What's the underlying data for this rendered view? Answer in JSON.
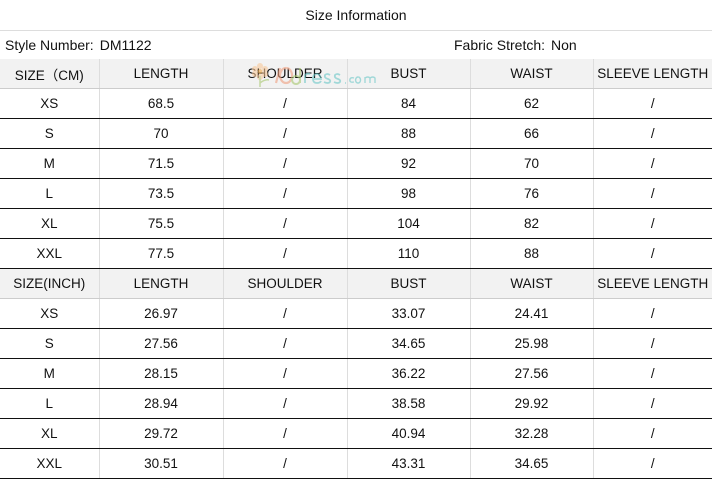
{
  "title": "Size Information",
  "style_label": "Style Number:",
  "style_value": "DM1122",
  "stretch_label": "Fabric Stretch:",
  "stretch_value": "Non",
  "watermark": "IOdress.com",
  "tables": [
    {
      "headers": [
        "SIZE（CM)",
        "LENGTH",
        "SHOULDER",
        "BUST",
        "WAIST",
        "SLEEVE LENGTH"
      ],
      "rows": [
        [
          "XS",
          "68.5",
          "/",
          "84",
          "62",
          "/"
        ],
        [
          "S",
          "70",
          "/",
          "88",
          "66",
          "/"
        ],
        [
          "M",
          "71.5",
          "/",
          "92",
          "70",
          "/"
        ],
        [
          "L",
          "73.5",
          "/",
          "98",
          "76",
          "/"
        ],
        [
          "XL",
          "75.5",
          "/",
          "104",
          "82",
          "/"
        ],
        [
          "XXL",
          "77.5",
          "/",
          "110",
          "88",
          "/"
        ]
      ]
    },
    {
      "headers": [
        "SIZE(INCH)",
        "LENGTH",
        "SHOULDER",
        "BUST",
        "WAIST",
        "SLEEVE LENGTH"
      ],
      "rows": [
        [
          "XS",
          "26.97",
          "/",
          "33.07",
          "24.41",
          "/"
        ],
        [
          "S",
          "27.56",
          "/",
          "34.65",
          "25.98",
          "/"
        ],
        [
          "M",
          "28.15",
          "/",
          "36.22",
          "27.56",
          "/"
        ],
        [
          "L",
          "28.94",
          "/",
          "38.58",
          "29.92",
          "/"
        ],
        [
          "XL",
          "29.72",
          "/",
          "40.94",
          "32.28",
          "/"
        ],
        [
          "XXL",
          "30.51",
          "/",
          "43.31",
          "34.65",
          "/"
        ]
      ]
    }
  ]
}
